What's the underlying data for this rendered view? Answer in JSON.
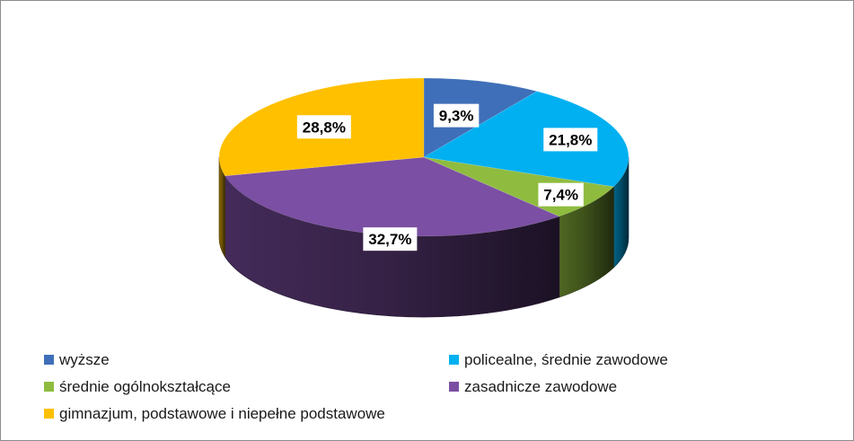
{
  "chart_data": {
    "type": "pie",
    "title": "",
    "categories": [
      "wyższe",
      "policealne, średnie zawodowe",
      "średnie ogólnokształcące",
      "zasadnicze zawodowe",
      "gimnazjum, podstawowe i niepełne podstawowe"
    ],
    "values": [
      9.3,
      21.8,
      7.4,
      32.7,
      28.8
    ],
    "data_labels": [
      "9,3%",
      "21,8%",
      "7,4%",
      "32,7%",
      "28,8%"
    ],
    "colors": [
      "#3f6fb8",
      "#00b0f0",
      "#8fbc3f",
      "#7b4fa3",
      "#ffc000"
    ],
    "legend_position": "bottom",
    "three_d": true
  }
}
